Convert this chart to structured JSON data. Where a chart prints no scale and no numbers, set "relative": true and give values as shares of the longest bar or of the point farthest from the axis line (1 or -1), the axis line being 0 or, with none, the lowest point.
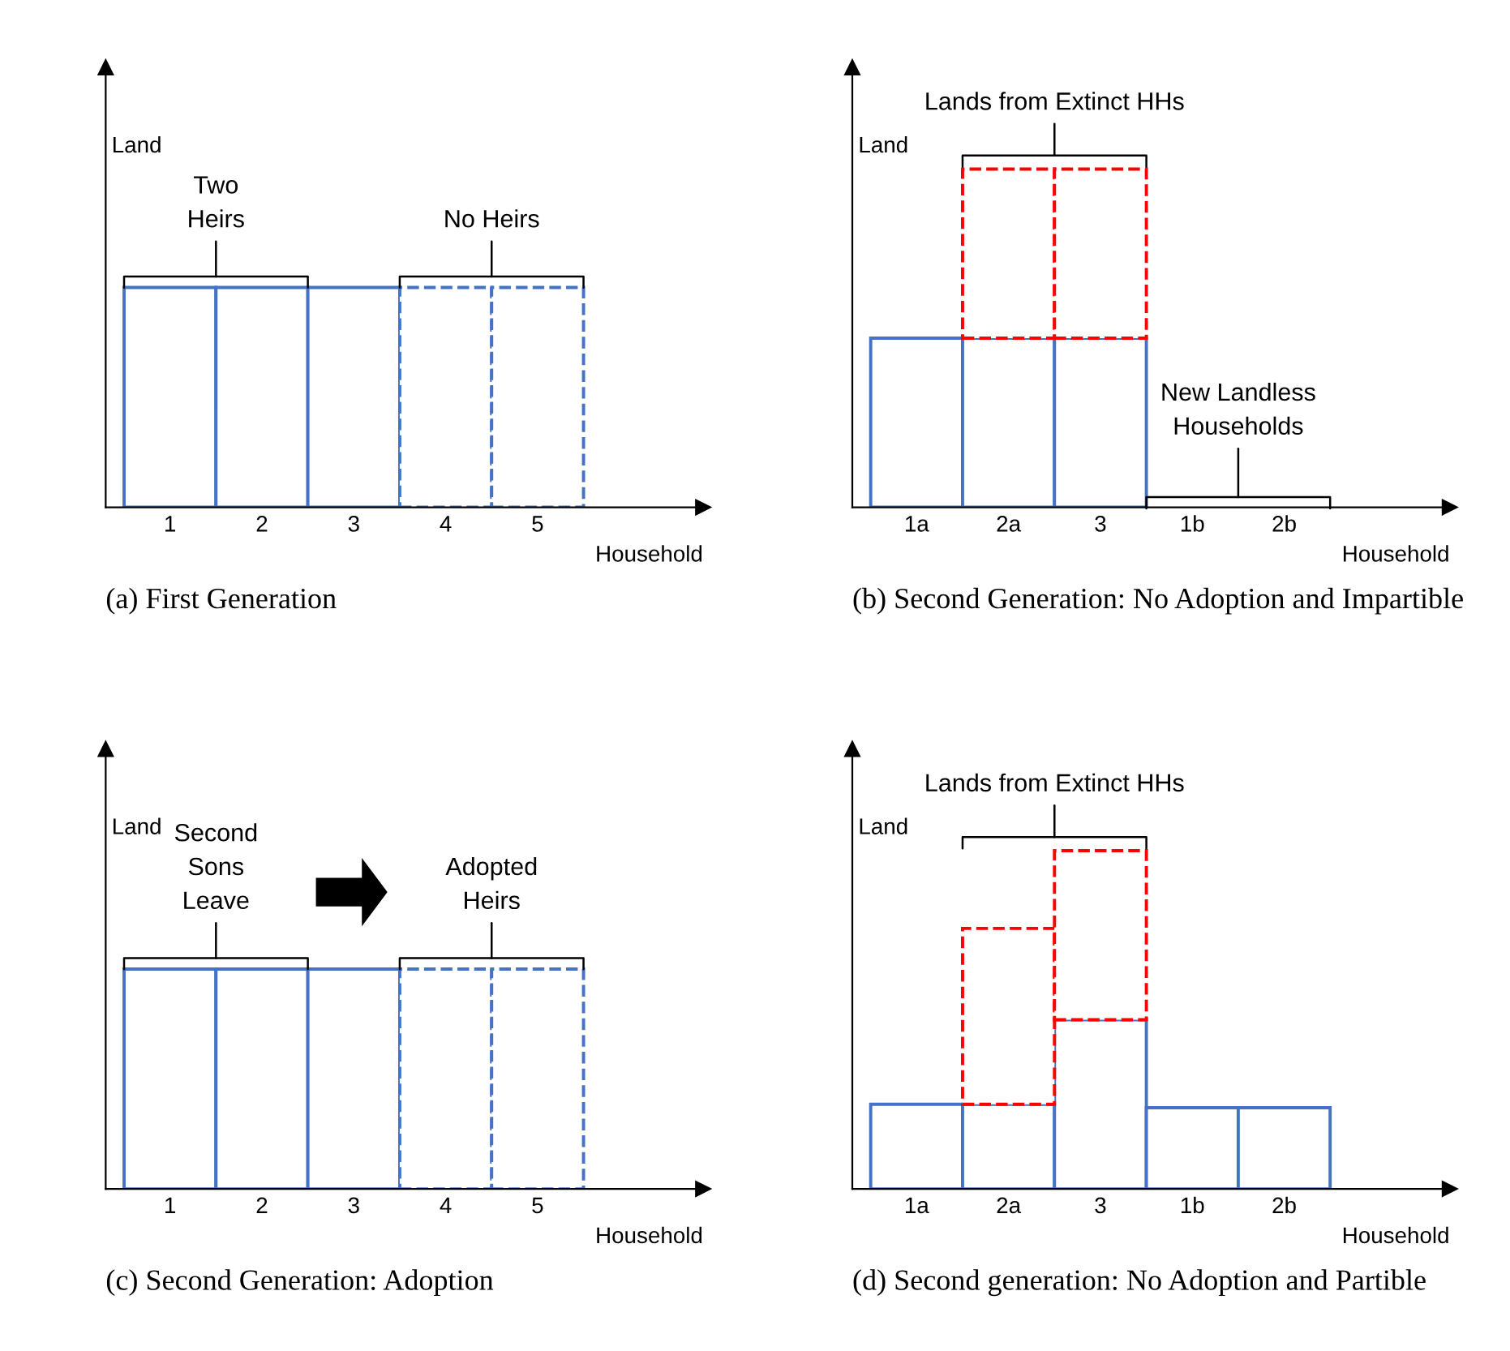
{
  "chart_data": [
    {
      "type": "bar",
      "title": "(a) First Generation",
      "xlabel": "Household",
      "ylabel": "Land",
      "categories": [
        "1",
        "2",
        "3",
        "4",
        "5"
      ],
      "relative": true,
      "tick_labels": "x",
      "series": [
        {
          "color": "#4472c4",
          "line_style": "solid",
          "values": [
            1,
            1,
            1,
            null,
            null
          ]
        },
        {
          "color": "#4472c4",
          "line_style": "dashed",
          "values": [
            null,
            null,
            null,
            1,
            1
          ]
        }
      ],
      "annotations": [
        "Two\nHeirs",
        "No Heirs"
      ]
    },
    {
      "type": "bar",
      "title": "(b) Second Generation: No Adoption and Impartible",
      "xlabel": "Household",
      "ylabel": "Land",
      "categories": [
        "1a",
        "2a",
        "3",
        "1b",
        "2b"
      ],
      "relative": true,
      "stacked": true,
      "tick_labels": "x",
      "series": [
        {
          "color": "#4472c4",
          "line_style": "solid",
          "values": [
            0.5,
            0.5,
            0.5,
            null,
            null
          ]
        },
        {
          "color": "#ff0000",
          "line_style": "dashed",
          "values": [
            null,
            0.5,
            0.5,
            null,
            null
          ]
        }
      ],
      "annotations": [
        "Lands from Extinct HHs",
        "New Landless\nHouseholds"
      ]
    },
    {
      "type": "bar",
      "title": "(c) Second Generation: Adoption",
      "xlabel": "Household",
      "ylabel": "Land",
      "categories": [
        "1",
        "2",
        "3",
        "4",
        "5"
      ],
      "relative": true,
      "tick_labels": "x",
      "series": [
        {
          "color": "#4472c4",
          "line_style": "solid",
          "values": [
            1,
            1,
            1,
            null,
            null
          ]
        },
        {
          "color": "#4472c4",
          "line_style": "dashed",
          "values": [
            null,
            null,
            null,
            1,
            1
          ]
        }
      ],
      "annotations": [
        "Second\nSons\nLeave",
        "Adopted\nHeirs"
      ]
    },
    {
      "type": "bar",
      "title": "(d) Second generation: No Adoption and Partible",
      "xlabel": "Household",
      "ylabel": "Land",
      "categories": [
        "1a",
        "2a",
        "3",
        "1b",
        "2b"
      ],
      "relative": true,
      "stacked": true,
      "tick_labels": "x",
      "series": [
        {
          "color": "#4472c4",
          "line_style": "solid",
          "values": [
            0.25,
            0.25,
            0.5,
            0.24,
            0.24
          ]
        },
        {
          "color": "#ff0000",
          "line_style": "dashed",
          "values": [
            null,
            0.52,
            0.5,
            null,
            null
          ]
        }
      ],
      "annotations": [
        "Lands from Extinct HHs"
      ]
    }
  ]
}
